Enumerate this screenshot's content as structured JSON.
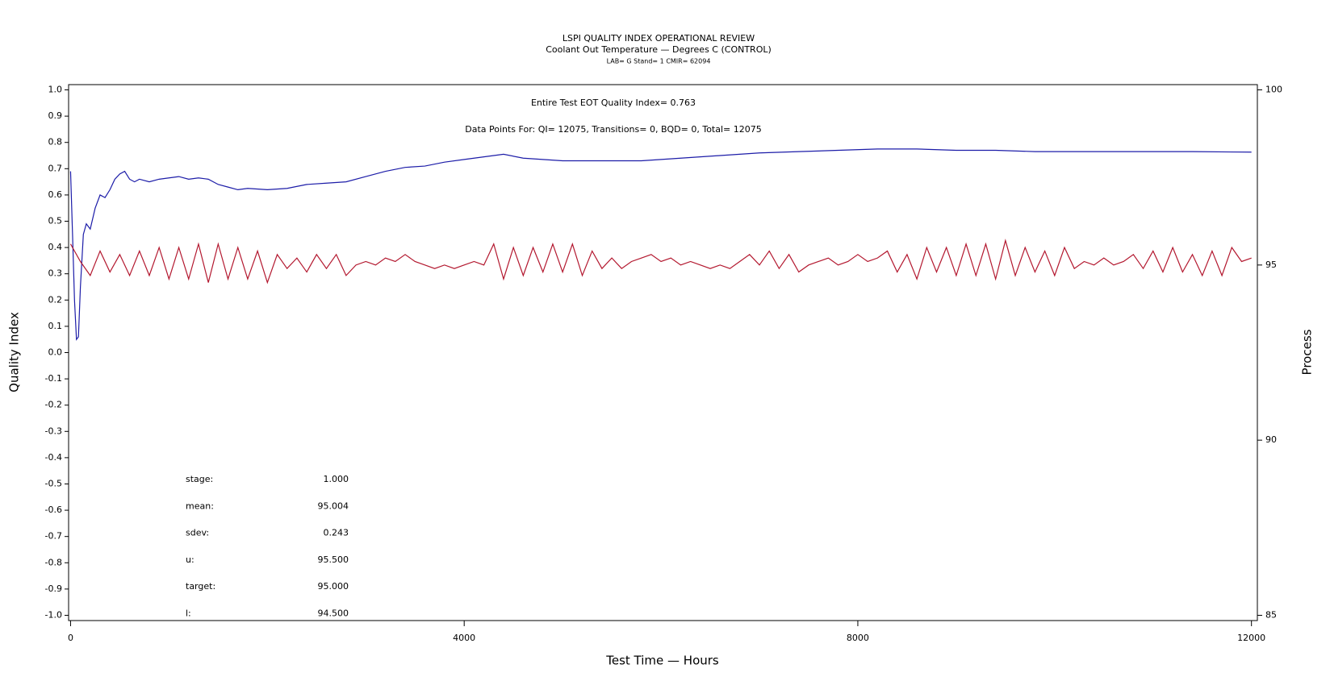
{
  "chart_data": {
    "type": "line",
    "title": "LSPI QUALITY INDEX OPERATIONAL REVIEW",
    "subtitle": "Coolant Out Temperature — Degrees C (CONTROL)",
    "subtitle2": "LAB= G Stand= 1 CMIR= 62094",
    "xlabel": "Test Time — Hours",
    "ylabel": "Quality Index",
    "y2label": "Process",
    "annotations": [
      "Entire Test EOT Quality Index=   0.763",
      "Data Points For: QI= 12075, Transitions=     0, BQD=     0, Total= 12075"
    ],
    "stats": [
      {
        "label": "stage:",
        "value": "1.000"
      },
      {
        "label": "mean:",
        "value": "95.004"
      },
      {
        "label": "sdev:",
        "value": "0.243"
      },
      {
        "label": "u:",
        "value": "95.500"
      },
      {
        "label": "target:",
        "value": "95.000"
      },
      {
        "label": "l:",
        "value": "94.500"
      }
    ],
    "xlim": [
      -20,
      12060
    ],
    "xticks": [
      0,
      4000,
      8000,
      12000
    ],
    "ylim": [
      -1.02,
      1.02
    ],
    "yticks": [
      {
        "value": 1.0,
        "label": "1.0"
      },
      0.9,
      0.8,
      0.7,
      0.6,
      0.5,
      0.4,
      0.3,
      0.2,
      0.1,
      {
        "value": 0,
        "label": "0.0"
      },
      -0.1,
      -0.2,
      -0.3,
      -0.4,
      -0.5,
      -0.6,
      -0.7,
      -0.8,
      -0.9,
      {
        "value": -1.0,
        "label": "-1.0"
      }
    ],
    "y2lim": [
      84.85,
      100.15
    ],
    "y2ticks": [
      85,
      90,
      95,
      100
    ],
    "series": [
      {
        "name": "Quality Index",
        "color": "#1c1ca8",
        "x": [
          0,
          20,
          40,
          60,
          80,
          100,
          130,
          160,
          200,
          250,
          300,
          350,
          400,
          450,
          500,
          550,
          600,
          650,
          700,
          800,
          900,
          1000,
          1100,
          1200,
          1300,
          1400,
          1500,
          1600,
          1700,
          1800,
          2000,
          2200,
          2400,
          2600,
          2800,
          3000,
          3200,
          3400,
          3600,
          3800,
          4000,
          4200,
          4400,
          4600,
          4800,
          5000,
          5400,
          5800,
          6200,
          6600,
          7000,
          7400,
          7800,
          8200,
          8600,
          9000,
          9400,
          9800,
          10200,
          10600,
          11000,
          11400,
          12000
        ],
        "values": [
          0.69,
          0.45,
          0.2,
          0.05,
          0.06,
          0.25,
          0.45,
          0.49,
          0.47,
          0.55,
          0.6,
          0.59,
          0.62,
          0.66,
          0.68,
          0.69,
          0.66,
          0.65,
          0.66,
          0.65,
          0.66,
          0.665,
          0.67,
          0.66,
          0.665,
          0.66,
          0.64,
          0.63,
          0.62,
          0.625,
          0.62,
          0.625,
          0.64,
          0.645,
          0.65,
          0.67,
          0.69,
          0.705,
          0.71,
          0.725,
          0.735,
          0.745,
          0.755,
          0.74,
          0.735,
          0.73,
          0.73,
          0.73,
          0.74,
          0.75,
          0.76,
          0.765,
          0.77,
          0.775,
          0.775,
          0.77,
          0.77,
          0.765,
          0.765,
          0.765,
          0.765,
          0.765,
          0.763
        ]
      },
      {
        "name": "Process",
        "color": "#b3182f",
        "axis": "y2",
        "x": [
          0,
          100,
          200,
          300,
          400,
          500,
          600,
          700,
          800,
          900,
          1000,
          1100,
          1200,
          1300,
          1400,
          1500,
          1600,
          1700,
          1800,
          1900,
          2000,
          2100,
          2200,
          2300,
          2400,
          2500,
          2600,
          2700,
          2800,
          2900,
          3000,
          3100,
          3200,
          3300,
          3400,
          3500,
          3600,
          3700,
          3800,
          3900,
          4000,
          4100,
          4200,
          4300,
          4400,
          4500,
          4600,
          4700,
          4800,
          4900,
          5000,
          5100,
          5200,
          5300,
          5400,
          5500,
          5600,
          5700,
          5800,
          5900,
          6000,
          6100,
          6200,
          6300,
          6400,
          6500,
          6600,
          6700,
          6800,
          6900,
          7000,
          7100,
          7200,
          7300,
          7400,
          7500,
          7600,
          7700,
          7800,
          7900,
          8000,
          8100,
          8200,
          8300,
          8400,
          8500,
          8600,
          8700,
          8800,
          8900,
          9000,
          9100,
          9200,
          9300,
          9400,
          9500,
          9600,
          9700,
          9800,
          9900,
          10000,
          10100,
          10200,
          10300,
          10400,
          10500,
          10600,
          10700,
          10800,
          10900,
          11000,
          11100,
          11200,
          11300,
          11400,
          11500,
          11600,
          11700,
          11800,
          11900,
          12000
        ],
        "values": [
          95.6,
          95.1,
          94.7,
          95.4,
          94.8,
          95.3,
          94.7,
          95.4,
          94.7,
          95.5,
          94.6,
          95.5,
          94.6,
          95.6,
          94.5,
          95.6,
          94.6,
          95.5,
          94.6,
          95.4,
          94.5,
          95.3,
          94.9,
          95.2,
          94.8,
          95.3,
          94.9,
          95.3,
          94.7,
          95.0,
          95.1,
          95.0,
          95.2,
          95.1,
          95.3,
          95.1,
          95.0,
          94.9,
          95.0,
          94.9,
          95.0,
          95.1,
          95.0,
          95.6,
          94.6,
          95.5,
          94.7,
          95.5,
          94.8,
          95.6,
          94.8,
          95.6,
          94.7,
          95.4,
          94.9,
          95.2,
          94.9,
          95.1,
          95.2,
          95.3,
          95.1,
          95.2,
          95.0,
          95.1,
          95.0,
          94.9,
          95.0,
          94.9,
          95.1,
          95.3,
          95.0,
          95.4,
          94.9,
          95.3,
          94.8,
          95.0,
          95.1,
          95.2,
          95.0,
          95.1,
          95.3,
          95.1,
          95.2,
          95.4,
          94.8,
          95.3,
          94.6,
          95.5,
          94.8,
          95.5,
          94.7,
          95.6,
          94.7,
          95.6,
          94.6,
          95.7,
          94.7,
          95.5,
          94.8,
          95.4,
          94.7,
          95.5,
          94.9,
          95.1,
          95.0,
          95.2,
          95.0,
          95.1,
          95.3,
          94.9,
          95.4,
          94.8,
          95.5,
          94.8,
          95.3,
          94.7,
          95.4,
          94.7,
          95.5,
          95.1,
          95.2
        ]
      }
    ]
  }
}
